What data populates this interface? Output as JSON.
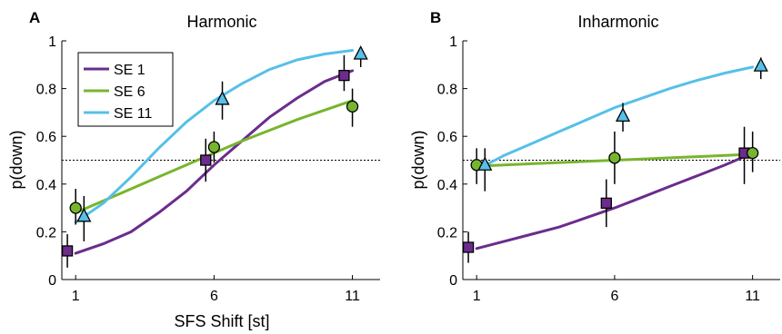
{
  "figure": {
    "xlabel": "SFS Shift [st]",
    "ylabel": "p(down)"
  },
  "colors": {
    "se1": "#6b2c8c",
    "se6": "#77b52e",
    "se11": "#56c0e8"
  },
  "legend": {
    "placement": "top-left of panel A",
    "entries": [
      "SE 1",
      "SE 6",
      "SE 11"
    ]
  },
  "chart_data": [
    {
      "type": "scatter",
      "panel_letter": "A",
      "title": "Harmonic",
      "xlabel": "SFS Shift [st]",
      "ylabel": "p(down)",
      "xticks": [
        "1",
        "6",
        "11"
      ],
      "yticks": [
        "0",
        "0.2",
        "0.4",
        "0.6",
        "0.8",
        "1"
      ],
      "xlim": [
        0.5,
        12
      ],
      "ylim": [
        0,
        1
      ],
      "reference_line": 0.5,
      "series": [
        {
          "name": "SE 1",
          "marker": "square",
          "points": [
            {
              "x": 0.7,
              "y": 0.12,
              "lo": 0.05,
              "hi": 0.19
            },
            {
              "x": 5.7,
              "y": 0.5,
              "lo": 0.41,
              "hi": 0.59
            },
            {
              "x": 10.7,
              "y": 0.855,
              "lo": 0.79,
              "hi": 0.94
            }
          ],
          "fit": [
            [
              1.0,
              0.11
            ],
            [
              2.0,
              0.15
            ],
            [
              3.0,
              0.2
            ],
            [
              4.0,
              0.28
            ],
            [
              5.0,
              0.37
            ],
            [
              6.0,
              0.48
            ],
            [
              7.0,
              0.58
            ],
            [
              8.0,
              0.68
            ],
            [
              9.0,
              0.76
            ],
            [
              10.0,
              0.83
            ],
            [
              11.0,
              0.875
            ]
          ]
        },
        {
          "name": "SE 6",
          "marker": "circle",
          "points": [
            {
              "x": 1.0,
              "y": 0.3,
              "lo": 0.23,
              "hi": 0.38
            },
            {
              "x": 6.0,
              "y": 0.555,
              "lo": 0.49,
              "hi": 0.62
            },
            {
              "x": 11.0,
              "y": 0.725,
              "lo": 0.64,
              "hi": 0.8
            }
          ],
          "fit": [
            [
              1.0,
              0.28
            ],
            [
              2.0,
              0.33
            ],
            [
              3.0,
              0.38
            ],
            [
              4.0,
              0.43
            ],
            [
              5.0,
              0.48
            ],
            [
              6.0,
              0.53
            ],
            [
              7.0,
              0.58
            ],
            [
              8.0,
              0.625
            ],
            [
              9.0,
              0.67
            ],
            [
              10.0,
              0.71
            ],
            [
              11.0,
              0.75
            ]
          ]
        },
        {
          "name": "SE 11",
          "marker": "triangle",
          "points": [
            {
              "x": 1.3,
              "y": 0.265,
              "lo": 0.16,
              "hi": 0.35
            },
            {
              "x": 6.3,
              "y": 0.755,
              "lo": 0.67,
              "hi": 0.83
            },
            {
              "x": 11.3,
              "y": 0.945,
              "lo": 0.89,
              "hi": 0.97
            }
          ],
          "fit": [
            [
              1.0,
              0.24
            ],
            [
              2.0,
              0.32
            ],
            [
              3.0,
              0.43
            ],
            [
              4.0,
              0.55
            ],
            [
              5.0,
              0.66
            ],
            [
              6.0,
              0.75
            ],
            [
              7.0,
              0.82
            ],
            [
              8.0,
              0.88
            ],
            [
              9.0,
              0.92
            ],
            [
              10.0,
              0.945
            ],
            [
              11.0,
              0.96
            ]
          ]
        }
      ]
    },
    {
      "type": "scatter",
      "panel_letter": "B",
      "title": "Inharmonic",
      "xlabel": "",
      "ylabel": "p(down)",
      "xticks": [
        "1",
        "6",
        "11"
      ],
      "yticks": [
        "0",
        "0.2",
        "0.4",
        "0.6",
        "0.8",
        "1"
      ],
      "xlim": [
        0.5,
        12
      ],
      "ylim": [
        0,
        1
      ],
      "reference_line": 0.5,
      "series": [
        {
          "name": "SE 1",
          "marker": "square",
          "points": [
            {
              "x": 0.7,
              "y": 0.135,
              "lo": 0.07,
              "hi": 0.2
            },
            {
              "x": 5.7,
              "y": 0.32,
              "lo": 0.22,
              "hi": 0.42
            },
            {
              "x": 10.7,
              "y": 0.53,
              "lo": 0.4,
              "hi": 0.64
            }
          ],
          "fit": [
            [
              1.0,
              0.13
            ],
            [
              2.0,
              0.16
            ],
            [
              3.0,
              0.19
            ],
            [
              4.0,
              0.22
            ],
            [
              5.0,
              0.26
            ],
            [
              6.0,
              0.3
            ],
            [
              7.0,
              0.345
            ],
            [
              8.0,
              0.39
            ],
            [
              9.0,
              0.435
            ],
            [
              10.0,
              0.48
            ],
            [
              11.0,
              0.53
            ]
          ]
        },
        {
          "name": "SE 6",
          "marker": "circle",
          "points": [
            {
              "x": 1.0,
              "y": 0.48,
              "lo": 0.4,
              "hi": 0.55
            },
            {
              "x": 6.0,
              "y": 0.51,
              "lo": 0.4,
              "hi": 0.62
            },
            {
              "x": 11.0,
              "y": 0.53,
              "lo": 0.45,
              "hi": 0.62
            }
          ],
          "fit": [
            [
              1.0,
              0.475
            ],
            [
              2.0,
              0.48
            ],
            [
              3.0,
              0.485
            ],
            [
              4.0,
              0.49
            ],
            [
              5.0,
              0.495
            ],
            [
              6.0,
              0.5
            ],
            [
              7.0,
              0.505
            ],
            [
              8.0,
              0.51
            ],
            [
              9.0,
              0.515
            ],
            [
              10.0,
              0.52
            ],
            [
              11.0,
              0.525
            ]
          ]
        },
        {
          "name": "SE 11",
          "marker": "triangle",
          "points": [
            {
              "x": 1.3,
              "y": 0.48,
              "lo": 0.37,
              "hi": 0.55
            },
            {
              "x": 6.3,
              "y": 0.685,
              "lo": 0.62,
              "hi": 0.74
            },
            {
              "x": 11.3,
              "y": 0.895,
              "lo": 0.84,
              "hi": 0.93
            }
          ],
          "fit": [
            [
              1.0,
              0.46
            ],
            [
              2.0,
              0.52
            ],
            [
              3.0,
              0.57
            ],
            [
              4.0,
              0.62
            ],
            [
              5.0,
              0.67
            ],
            [
              6.0,
              0.72
            ],
            [
              7.0,
              0.76
            ],
            [
              8.0,
              0.8
            ],
            [
              9.0,
              0.835
            ],
            [
              10.0,
              0.865
            ],
            [
              11.0,
              0.89
            ]
          ]
        }
      ]
    }
  ]
}
